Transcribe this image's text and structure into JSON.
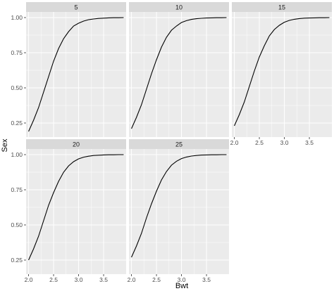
{
  "chart_data": {
    "type": "line",
    "facet_variable_values": [
      "5",
      "10",
      "15",
      "20",
      "25"
    ],
    "xlabel": "Bwt",
    "ylabel": "Sex",
    "xlim": [
      1.95,
      3.95
    ],
    "ylim": [
      0.15,
      1.04
    ],
    "x_ticks": [
      2.0,
      2.5,
      3.0,
      3.5
    ],
    "x_tick_labels": [
      "2.0",
      "2.5",
      "3.0",
      "3.5"
    ],
    "y_ticks": [
      0.25,
      0.5,
      0.75,
      1.0
    ],
    "y_tick_labels": [
      "0.25",
      "0.50",
      "0.75",
      "1.00"
    ],
    "grid": true,
    "panels": [
      {
        "label": "5",
        "x": [
          2.0,
          2.1,
          2.2,
          2.3,
          2.4,
          2.5,
          2.6,
          2.7,
          2.8,
          2.9,
          3.0,
          3.1,
          3.2,
          3.3,
          3.4,
          3.5,
          3.6,
          3.7,
          3.8,
          3.9
        ],
        "y": [
          0.19,
          0.27,
          0.36,
          0.47,
          0.58,
          0.69,
          0.78,
          0.85,
          0.9,
          0.94,
          0.96,
          0.975,
          0.985,
          0.99,
          0.994,
          0.996,
          0.998,
          0.999,
          0.999,
          1.0
        ]
      },
      {
        "label": "10",
        "x": [
          2.0,
          2.1,
          2.2,
          2.3,
          2.4,
          2.5,
          2.6,
          2.7,
          2.8,
          2.9,
          3.0,
          3.1,
          3.2,
          3.3,
          3.4,
          3.5,
          3.6,
          3.7,
          3.8,
          3.9
        ],
        "y": [
          0.21,
          0.29,
          0.38,
          0.49,
          0.6,
          0.7,
          0.79,
          0.86,
          0.91,
          0.94,
          0.965,
          0.978,
          0.987,
          0.992,
          0.995,
          0.997,
          0.998,
          0.999,
          0.999,
          1.0
        ]
      },
      {
        "label": "15",
        "x": [
          2.0,
          2.1,
          2.2,
          2.3,
          2.4,
          2.5,
          2.6,
          2.7,
          2.8,
          2.9,
          3.0,
          3.1,
          3.2,
          3.3,
          3.4,
          3.5,
          3.6,
          3.7,
          3.8,
          3.9
        ],
        "y": [
          0.23,
          0.31,
          0.4,
          0.51,
          0.62,
          0.72,
          0.8,
          0.87,
          0.915,
          0.945,
          0.967,
          0.98,
          0.988,
          0.993,
          0.996,
          0.997,
          0.998,
          0.999,
          0.999,
          1.0
        ]
      },
      {
        "label": "20",
        "x": [
          2.0,
          2.1,
          2.2,
          2.3,
          2.4,
          2.5,
          2.6,
          2.7,
          2.8,
          2.9,
          3.0,
          3.1,
          3.2,
          3.3,
          3.4,
          3.5,
          3.6,
          3.7,
          3.8,
          3.9
        ],
        "y": [
          0.25,
          0.33,
          0.42,
          0.53,
          0.64,
          0.73,
          0.81,
          0.875,
          0.92,
          0.95,
          0.97,
          0.982,
          0.989,
          0.994,
          0.996,
          0.998,
          0.999,
          0.999,
          1.0,
          1.0
        ]
      },
      {
        "label": "25",
        "x": [
          2.0,
          2.1,
          2.2,
          2.3,
          2.4,
          2.5,
          2.6,
          2.7,
          2.8,
          2.9,
          3.0,
          3.1,
          3.2,
          3.3,
          3.4,
          3.5,
          3.6,
          3.7,
          3.8,
          3.9
        ],
        "y": [
          0.27,
          0.35,
          0.44,
          0.55,
          0.65,
          0.74,
          0.82,
          0.88,
          0.925,
          0.953,
          0.972,
          0.983,
          0.99,
          0.994,
          0.997,
          0.998,
          0.999,
          0.999,
          1.0,
          1.0
        ]
      }
    ],
    "colors": {
      "panel_background": "#ebebeb",
      "grid_major": "#ffffff",
      "strip_background": "#d9d9d9",
      "line": "#000000",
      "tick_text": "#4d4d4d",
      "tick_mark": "#333333"
    }
  }
}
